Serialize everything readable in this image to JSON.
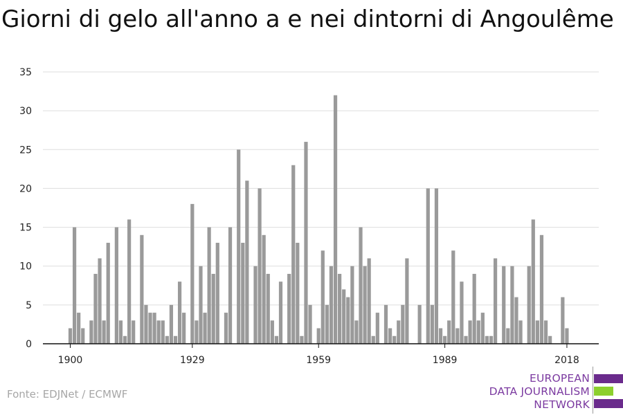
{
  "header": {
    "title": "Giorni di gelo all'anno a e nei dintorni di Angoulême"
  },
  "footer": {
    "source": "Fonte: EDJNet / ECMWF"
  },
  "logo": {
    "lines": [
      "EUROPEAN",
      "DATA JOURNALISM",
      "NETWORK"
    ],
    "colors": {
      "text": "#7b3aa0",
      "purple": "#6a2b8c",
      "green": "#8ccf2e"
    }
  },
  "chart_data": {
    "type": "bar",
    "title": "Giorni di gelo all'anno a e nei dintorni di Angoulême",
    "xlabel": "",
    "ylabel": "",
    "bar_color": "#9a9a9a",
    "ylim": [
      0,
      35
    ],
    "yticks": [
      0,
      5,
      10,
      15,
      20,
      25,
      30,
      35
    ],
    "xticks": [
      1900,
      1929,
      1959,
      1989,
      2018
    ],
    "grid": true,
    "x": [
      1900,
      1901,
      1902,
      1903,
      1904,
      1905,
      1906,
      1907,
      1908,
      1909,
      1910,
      1911,
      1912,
      1913,
      1914,
      1915,
      1916,
      1917,
      1918,
      1919,
      1920,
      1921,
      1922,
      1923,
      1924,
      1925,
      1926,
      1927,
      1928,
      1929,
      1930,
      1931,
      1932,
      1933,
      1934,
      1935,
      1936,
      1937,
      1938,
      1939,
      1940,
      1941,
      1942,
      1943,
      1944,
      1945,
      1946,
      1947,
      1948,
      1949,
      1950,
      1951,
      1952,
      1953,
      1954,
      1955,
      1956,
      1957,
      1958,
      1959,
      1960,
      1961,
      1962,
      1963,
      1964,
      1965,
      1966,
      1967,
      1968,
      1969,
      1970,
      1971,
      1972,
      1973,
      1974,
      1975,
      1976,
      1977,
      1978,
      1979,
      1980,
      1981,
      1982,
      1983,
      1984,
      1985,
      1986,
      1987,
      1988,
      1989,
      1990,
      1991,
      1992,
      1993,
      1994,
      1995,
      1996,
      1997,
      1998,
      1999,
      2000,
      2001,
      2002,
      2003,
      2004,
      2005,
      2006,
      2007,
      2008,
      2009,
      2010,
      2011,
      2012,
      2013,
      2014,
      2015,
      2016,
      2017,
      2018,
      2019
    ],
    "values": [
      2,
      15,
      4,
      2,
      0,
      3,
      9,
      11,
      3,
      13,
      0,
      15,
      3,
      1,
      16,
      3,
      0,
      14,
      5,
      4,
      4,
      3,
      3,
      1,
      5,
      1,
      8,
      4,
      0,
      18,
      3,
      10,
      4,
      15,
      9,
      13,
      0,
      4,
      15,
      0,
      25,
      13,
      21,
      0,
      10,
      20,
      14,
      9,
      3,
      1,
      8,
      0,
      9,
      23,
      13,
      1,
      26,
      5,
      0,
      2,
      12,
      5,
      10,
      32,
      9,
      7,
      6,
      10,
      3,
      15,
      10,
      11,
      1,
      4,
      0,
      5,
      2,
      1,
      3,
      5,
      11,
      0,
      0,
      5,
      0,
      20,
      5,
      20,
      2,
      1,
      3,
      12,
      2,
      8,
      1,
      3,
      9,
      3,
      4,
      1,
      1,
      11,
      0,
      10,
      2,
      10,
      6,
      3,
      0,
      10,
      16,
      3,
      14,
      3,
      1,
      0,
      0,
      6,
      2,
      0
    ]
  }
}
